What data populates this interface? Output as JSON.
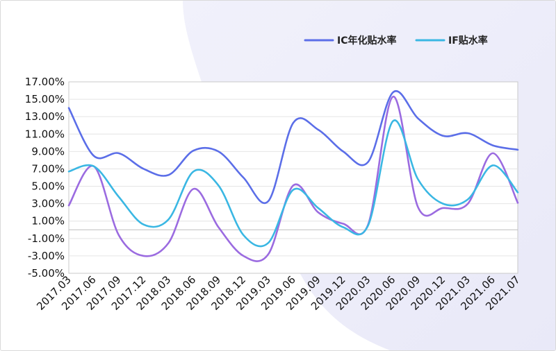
{
  "chart_data": {
    "type": "line",
    "title": "",
    "xlabel": "",
    "ylabel": "",
    "ylim": [
      -5,
      17
    ],
    "y_ticks": [
      "17.00%",
      "15.00%",
      "13.00%",
      "11.00%",
      "9.00%",
      "7.00%",
      "5.00%",
      "3.00%",
      "1.00%",
      "-1.00%",
      "-3.00%",
      "-5.00%"
    ],
    "x_ticks": [
      "2017.03",
      "2017.06",
      "2017.09",
      "2017.12",
      "2018.03",
      "2018.06",
      "2018.09",
      "2018.12",
      "2019.03",
      "2019.06",
      "2019.09",
      "2019.12",
      "2020.03",
      "2020.06",
      "2020.09",
      "2020.12",
      "2021.03",
      "2021.06",
      "2021.07"
    ],
    "grid": true,
    "legend_position": "top-right",
    "series": [
      {
        "name": "IC年化贴水率",
        "color": "#5b6ee8",
        "in_legend": true,
        "values": [
          14.0,
          8.5,
          8.8,
          7.0,
          6.3,
          9.1,
          9.0,
          6.0,
          3.3,
          12.3,
          11.5,
          9.0,
          7.8,
          15.8,
          12.8,
          10.8,
          11.1,
          9.7,
          9.2
        ]
      },
      {
        "name": "IF贴水率",
        "color": "#3ab7e3",
        "in_legend": true,
        "values": [
          6.7,
          7.3,
          3.8,
          0.6,
          1.2,
          6.7,
          5.1,
          -0.6,
          -1.5,
          4.6,
          2.5,
          0.3,
          0.5,
          12.5,
          5.8,
          3.0,
          3.5,
          7.4,
          4.3
        ]
      },
      {
        "name": "",
        "color": "#9b6be0",
        "in_legend": false,
        "values": [
          2.8,
          7.3,
          -0.6,
          -3.0,
          -1.5,
          4.7,
          0.3,
          -3.0,
          -2.8,
          5.1,
          2.0,
          0.7,
          0.6,
          15.3,
          2.6,
          2.5,
          3.0,
          8.8,
          3.1
        ]
      }
    ]
  }
}
